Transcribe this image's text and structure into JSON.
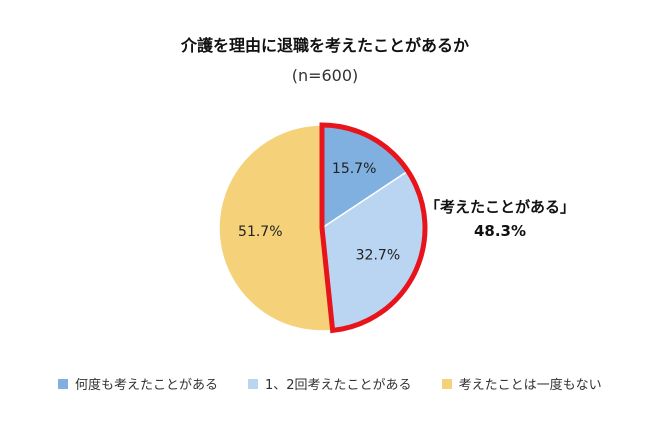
{
  "title": "介護を理由に退職を考えたことがあるか",
  "subtitle": "(n=600)",
  "colors": {
    "frequent": "#7fb0e0",
    "once_twice": "#b9d5f1",
    "never": "#f5d27a",
    "highlight": "#e8141b"
  },
  "chart_data": {
    "type": "pie",
    "title": "介護を理由に退職を考えたことがあるか",
    "subtitle": "(n=600)",
    "start": "12 o'clock, clockwise",
    "slices": [
      {
        "label": "何度も考えたことがある",
        "value": 15.7,
        "display": "15.7%",
        "color": "#7fb0e0"
      },
      {
        "label": "1、2回考えたことがある",
        "value": 32.7,
        "display": "32.7%",
        "color": "#b9d5f1"
      },
      {
        "label": "考えたことは一度もない",
        "value": 51.7,
        "display": "51.7%",
        "color": "#f5d27a"
      }
    ],
    "highlight": {
      "label": "「考えたことがある」",
      "value": "48.3%",
      "slices": [
        0,
        1
      ],
      "color": "#e8141b"
    },
    "legend_position": "bottom"
  }
}
